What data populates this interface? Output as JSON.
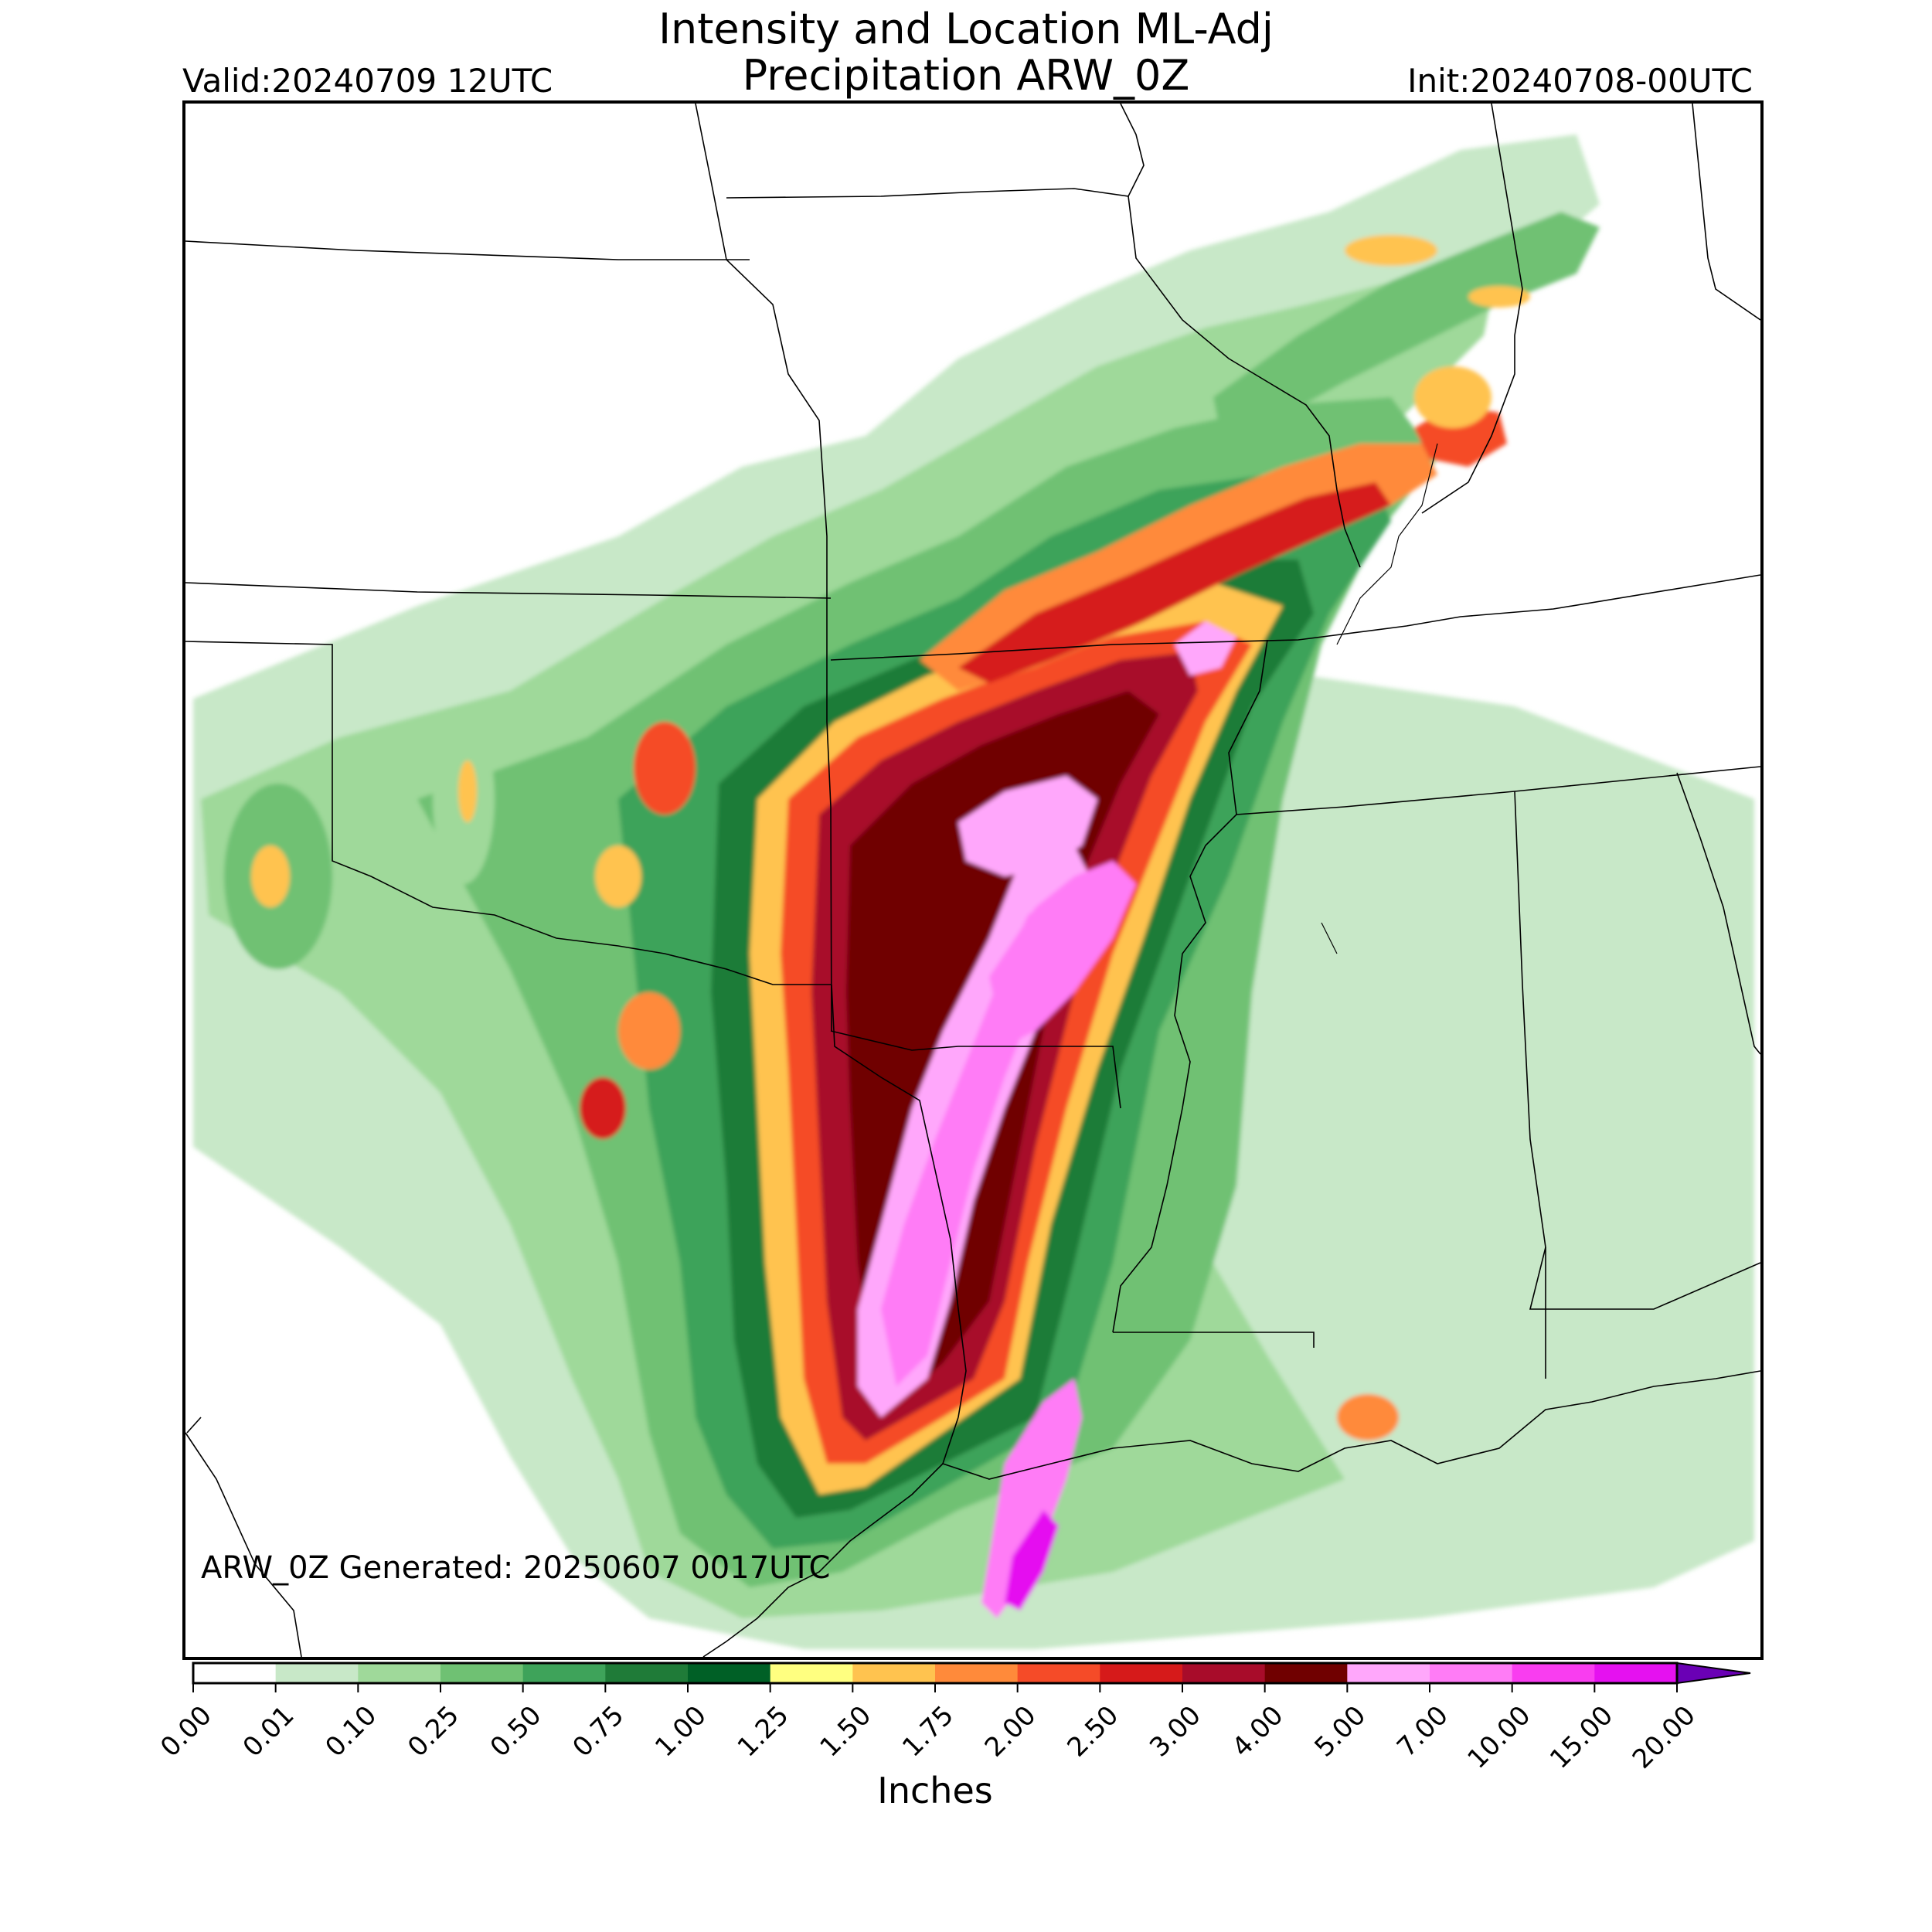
{
  "header": {
    "title_line1": "Intensity and Location ML-Adj",
    "title_line2": "Precipitation ARW_0Z",
    "valid": "Valid:20240709 12UTC",
    "init": "Init:20240708-00UTC"
  },
  "map": {
    "generated": "ARW_0Z Generated: 20250607 0017UTC",
    "region": "South-central United States (Texas, Oklahoma, Arkansas, Louisiana, Missouri, Mississippi)",
    "field": "Accumulated precipitation swath from a landfalling tropical system"
  },
  "colorbar": {
    "label": "Inches",
    "ticks": [
      "0.00",
      "0.01",
      "0.10",
      "0.25",
      "0.50",
      "0.75",
      "1.00",
      "1.25",
      "1.50",
      "1.75",
      "2.00",
      "2.50",
      "3.00",
      "4.00",
      "5.00",
      "7.00",
      "10.00",
      "15.00",
      "20.00"
    ],
    "colors": [
      "#ffffff",
      "#c8e8c8",
      "#9fd99a",
      "#6fc173",
      "#3ea35a",
      "#1f7b38",
      "#006026",
      "#ffff80",
      "#ffc34f",
      "#ff8a3a",
      "#f54b28",
      "#d61a1a",
      "#a80c2a",
      "#700000",
      "#ffa7fb",
      "#ff7cf6",
      "#f93df0",
      "#e511f0",
      "#a612d6",
      "#6a00b5"
    ],
    "extend": "max"
  }
}
